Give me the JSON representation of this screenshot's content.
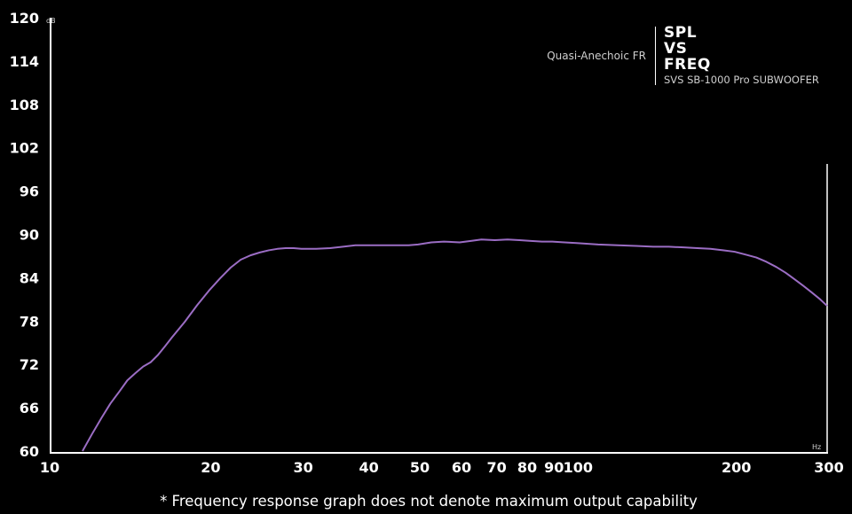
{
  "colors": {
    "background": "#000000",
    "axis": "#ffffff",
    "curve": "#9b6dc4",
    "text": "#ffffff",
    "muted_text": "#cfcfcf"
  },
  "header": {
    "title_lines": [
      "SPL",
      "VS",
      "FREQ"
    ],
    "subtitle": "SVS SB-1000 Pro SUBWOOFER",
    "measurement": "Quasi-Anechoic FR"
  },
  "footnote": "* Frequency response graph does not denote maximum output capability",
  "chart_data": {
    "type": "line",
    "x_scale": "log",
    "xlim": [
      10,
      300
    ],
    "ylim": [
      60,
      120
    ],
    "grid": false,
    "x_unit": "Hz",
    "y_unit": "dB",
    "y_ticks": [
      60,
      66,
      72,
      78,
      84,
      90,
      96,
      102,
      108,
      114,
      120
    ],
    "x_ticks": [
      10,
      20,
      30,
      40,
      50,
      60,
      70,
      80,
      90,
      100,
      200,
      300
    ],
    "series": [
      {
        "x": [
          11.5,
          12,
          12.5,
          13,
          13.5,
          14,
          14.5,
          15,
          15.5,
          16,
          16.5,
          17,
          18,
          19,
          20,
          21,
          22,
          23,
          24,
          25,
          26,
          27,
          28,
          29,
          30,
          32,
          34,
          36,
          38,
          40,
          42,
          45,
          48,
          50,
          53,
          56,
          60,
          63,
          66,
          70,
          74,
          78,
          82,
          86,
          90,
          95,
          100,
          110,
          120,
          130,
          140,
          150,
          160,
          170,
          180,
          190,
          200,
          210,
          220,
          230,
          240,
          250,
          260,
          270,
          280,
          290,
          300
        ],
        "y": [
          60,
          62.4,
          64.6,
          66.6,
          68.2,
          69.8,
          70.8,
          71.7,
          72.3,
          73.3,
          74.5,
          75.7,
          77.9,
          80.2,
          82.2,
          83.9,
          85.4,
          86.5,
          87.1,
          87.5,
          87.8,
          88.0,
          88.1,
          88.1,
          88.0,
          88.0,
          88.1,
          88.3,
          88.5,
          88.5,
          88.5,
          88.5,
          88.5,
          88.6,
          88.9,
          89.0,
          88.9,
          89.1,
          89.3,
          89.2,
          89.3,
          89.2,
          89.1,
          89.0,
          89.0,
          88.9,
          88.8,
          88.6,
          88.5,
          88.4,
          88.3,
          88.3,
          88.2,
          88.1,
          88.0,
          87.8,
          87.6,
          87.2,
          86.8,
          86.2,
          85.5,
          84.7,
          83.8,
          82.9,
          82.0,
          81.1,
          80.1
        ]
      }
    ]
  }
}
